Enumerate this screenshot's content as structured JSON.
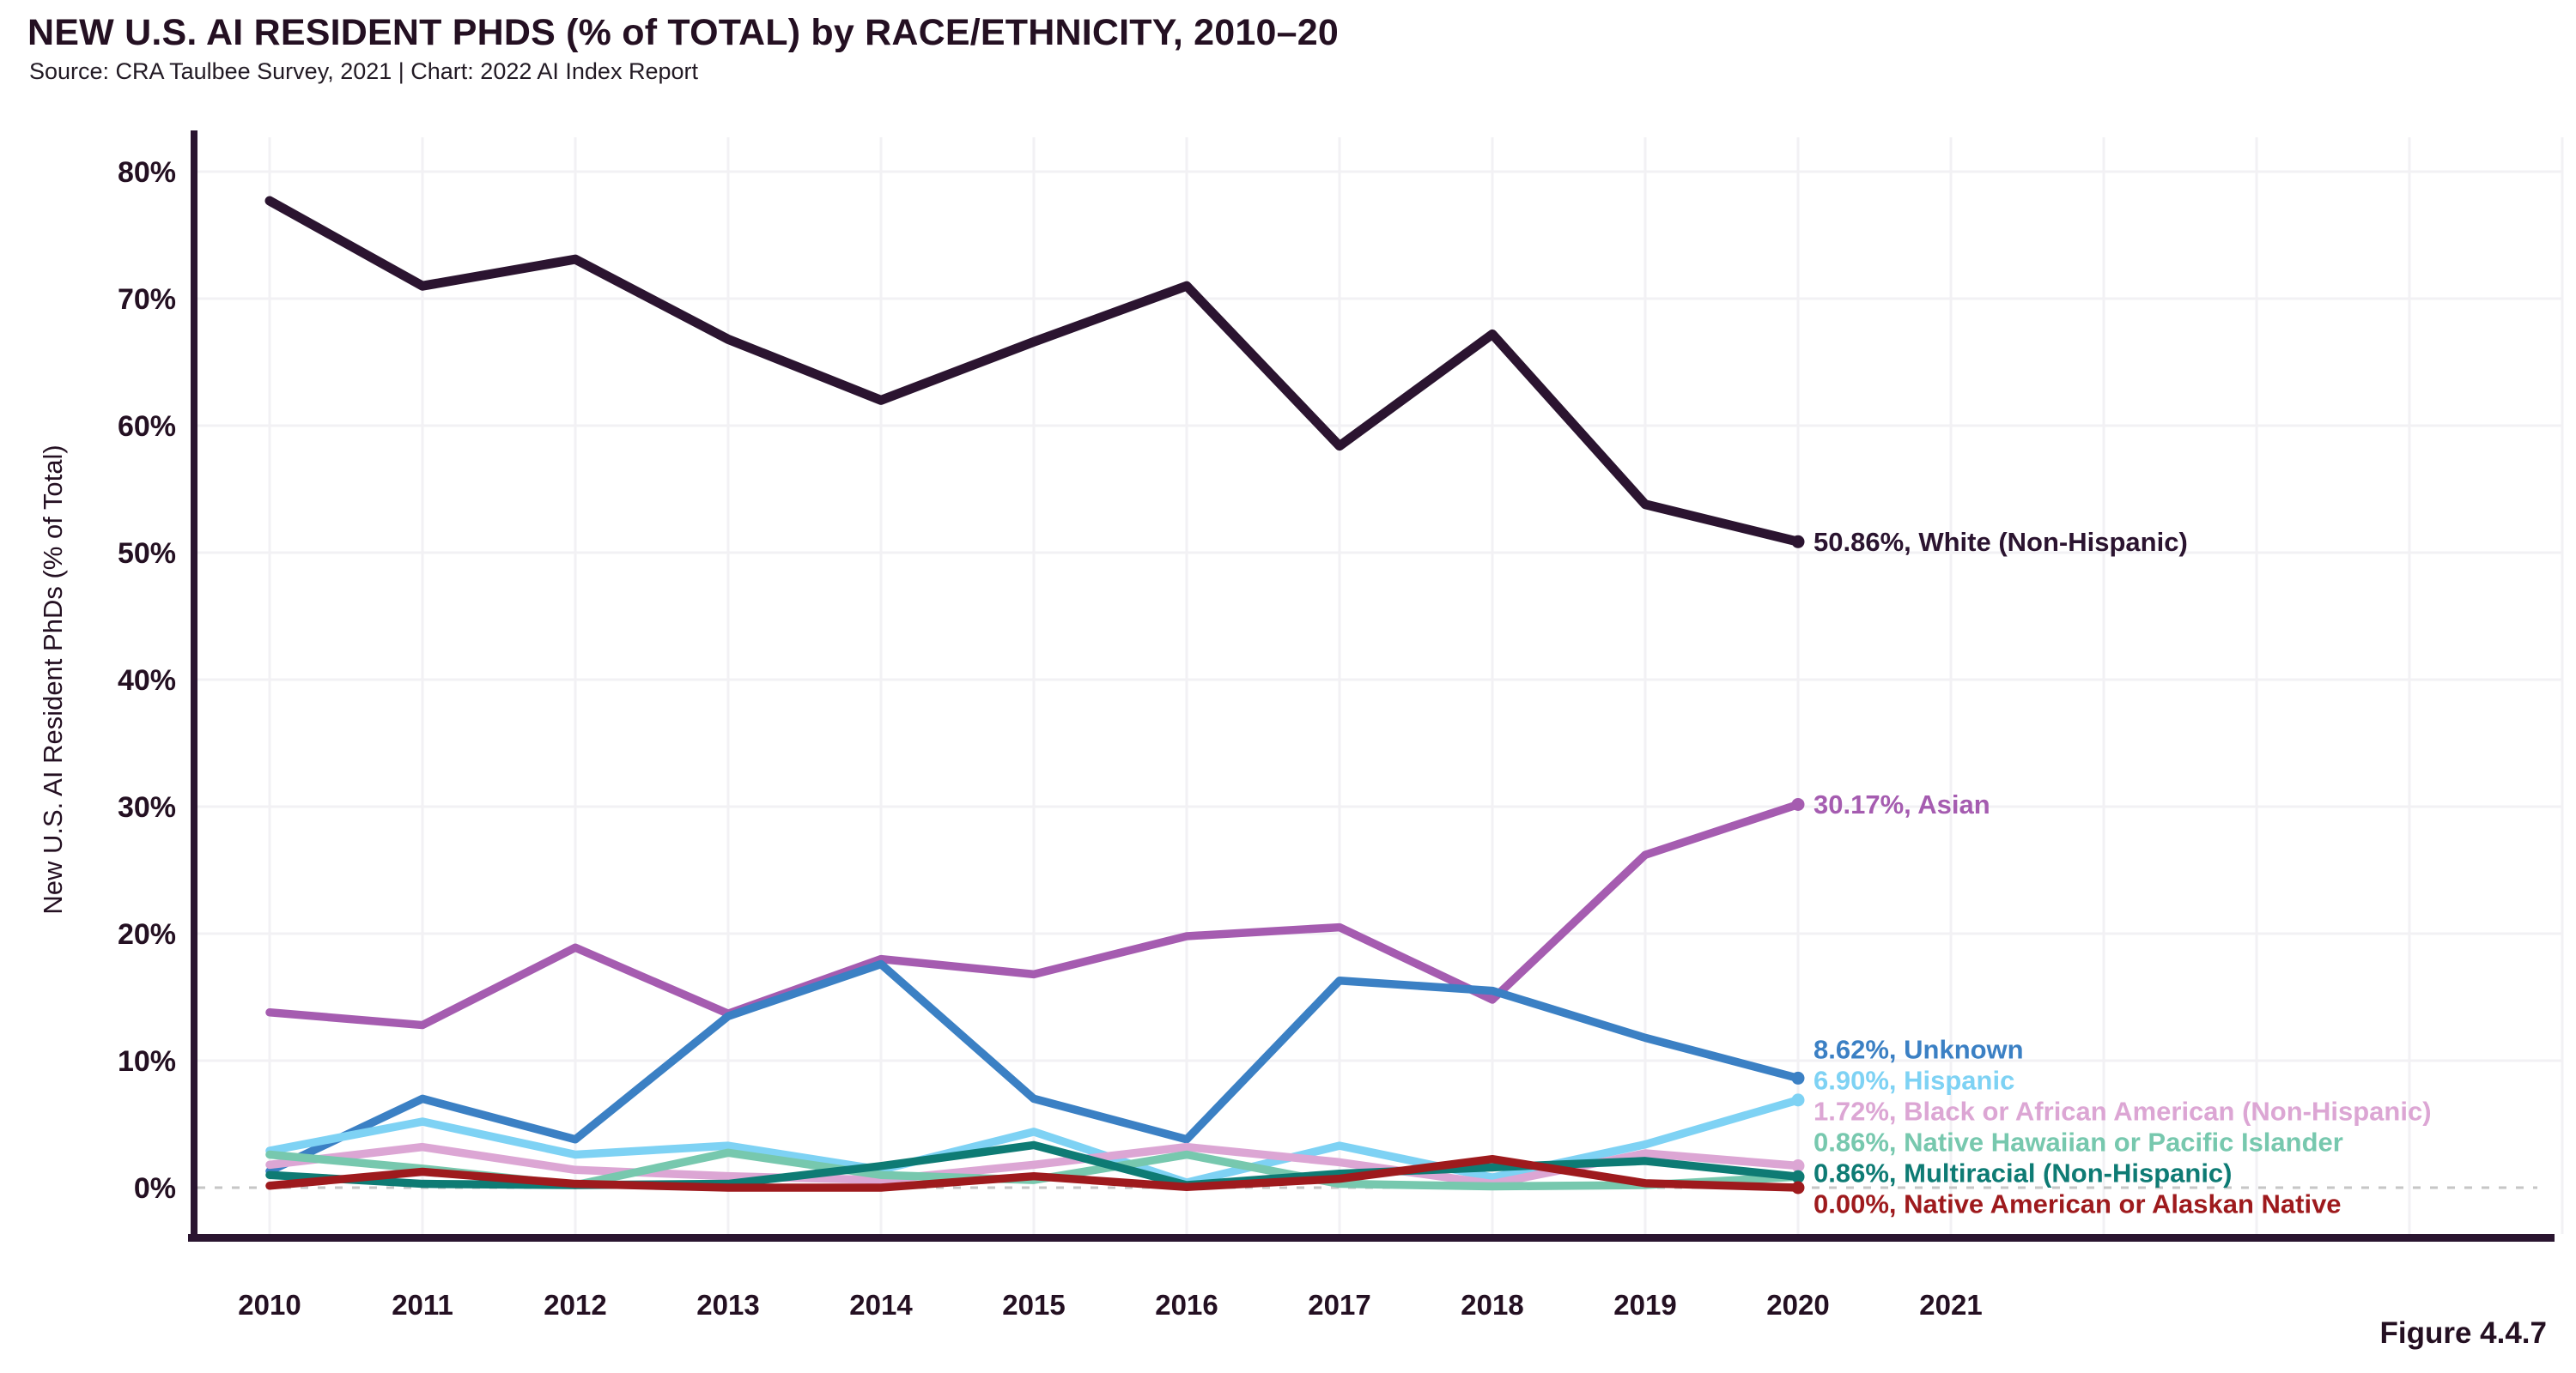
{
  "header": {
    "title": "NEW U.S. AI RESIDENT PHDS (% of TOTAL) by RACE/ETHNICITY, 2010–20",
    "source": "Source: CRA Taulbee Survey, 2021 | Chart: 2022 AI Index Report"
  },
  "footer": {
    "figure_label": "Figure 4.4.7"
  },
  "chart_data": {
    "type": "line",
    "title": "NEW U.S. AI RESIDENT PHDS (% of TOTAL) by RACE/ETHNICITY, 2010–20",
    "xlabel": "",
    "ylabel": "New U.S. AI Resident PhDs (% of Total)",
    "ylim": [
      0,
      80
    ],
    "yticks": [
      0,
      10,
      20,
      30,
      40,
      50,
      60,
      70,
      80
    ],
    "ytick_suffix": "%",
    "grid": true,
    "zero_line_style": "dashed",
    "legend_position": "end-of-line-labels-right",
    "x": [
      2010,
      2011,
      2012,
      2013,
      2014,
      2015,
      2016,
      2017,
      2018,
      2019,
      2020
    ],
    "xtick_labels": [
      "2010",
      "2011",
      "2012",
      "2013",
      "2014",
      "2015",
      "2016",
      "2017",
      "2018",
      "2019",
      "2020",
      "2021"
    ],
    "colors": {
      "grid": "#f2f1f4",
      "axis": "#2a1530",
      "zero_dash": "#c6c6c6",
      "text": "#241022"
    },
    "series": [
      {
        "name": "White (Non-Hispanic)",
        "color": "#2b1430",
        "end_label": "50.86%, White (Non-Hispanic)",
        "end_value": "50.86%",
        "values": [
          77.7,
          71.0,
          73.1,
          66.8,
          62.0,
          66.6,
          71.0,
          58.4,
          67.2,
          53.8,
          50.86
        ]
      },
      {
        "name": "Asian",
        "color": "#a55cb0",
        "end_label": "30.17%, Asian",
        "end_value": "30.17%",
        "values": [
          13.8,
          12.8,
          18.9,
          13.7,
          18.0,
          16.8,
          19.8,
          20.5,
          14.8,
          26.2,
          30.17
        ]
      },
      {
        "name": "Unknown",
        "color": "#3b80c4",
        "end_label": "8.62%, Unknown",
        "end_value": "8.62%",
        "values": [
          1.3,
          7.0,
          3.8,
          13.5,
          17.6,
          7.0,
          3.8,
          16.3,
          15.5,
          11.8,
          8.62
        ]
      },
      {
        "name": "Hispanic",
        "color": "#7ed2f4",
        "end_label": "6.90%, Hispanic",
        "end_value": "6.90%",
        "values": [
          2.9,
          5.2,
          2.6,
          3.3,
          1.4,
          4.4,
          0.4,
          3.3,
          0.8,
          3.4,
          6.9
        ]
      },
      {
        "name": "Black or African American (Non-Hispanic)",
        "color": "#dca6d4",
        "end_label": "1.72%, Black or African American (Non-Hispanic)",
        "end_value": "1.72%",
        "values": [
          1.8,
          3.2,
          1.4,
          0.9,
          0.6,
          1.8,
          3.2,
          2.0,
          0.3,
          2.7,
          1.72
        ]
      },
      {
        "name": "Native Hawaiian or Pacific Islander",
        "color": "#77c8ae",
        "end_label": "0.86%, Native Hawaiian or Pacific Islander",
        "end_value": "0.86%",
        "values": [
          2.6,
          1.5,
          0.2,
          2.75,
          1.0,
          0.6,
          2.6,
          0.3,
          0.1,
          0.2,
          0.86
        ]
      },
      {
        "name": "Multiracial (Non-Hispanic)",
        "color": "#0e7b74",
        "end_label": "0.86%, Multiracial (Non-Hispanic)",
        "end_value": "0.86%",
        "values": [
          1.0,
          0.3,
          0.2,
          0.3,
          1.7,
          3.35,
          0.2,
          1.1,
          1.6,
          2.1,
          0.86
        ]
      },
      {
        "name": "Native American or Alaskan Native",
        "color": "#9e1a1d",
        "end_label": "0.00%, Native American or Alaskan Native",
        "end_value": "0.00%",
        "values": [
          0.15,
          1.25,
          0.3,
          0.0,
          0.0,
          0.9,
          0.05,
          0.7,
          2.25,
          0.35,
          0.0
        ]
      }
    ]
  }
}
